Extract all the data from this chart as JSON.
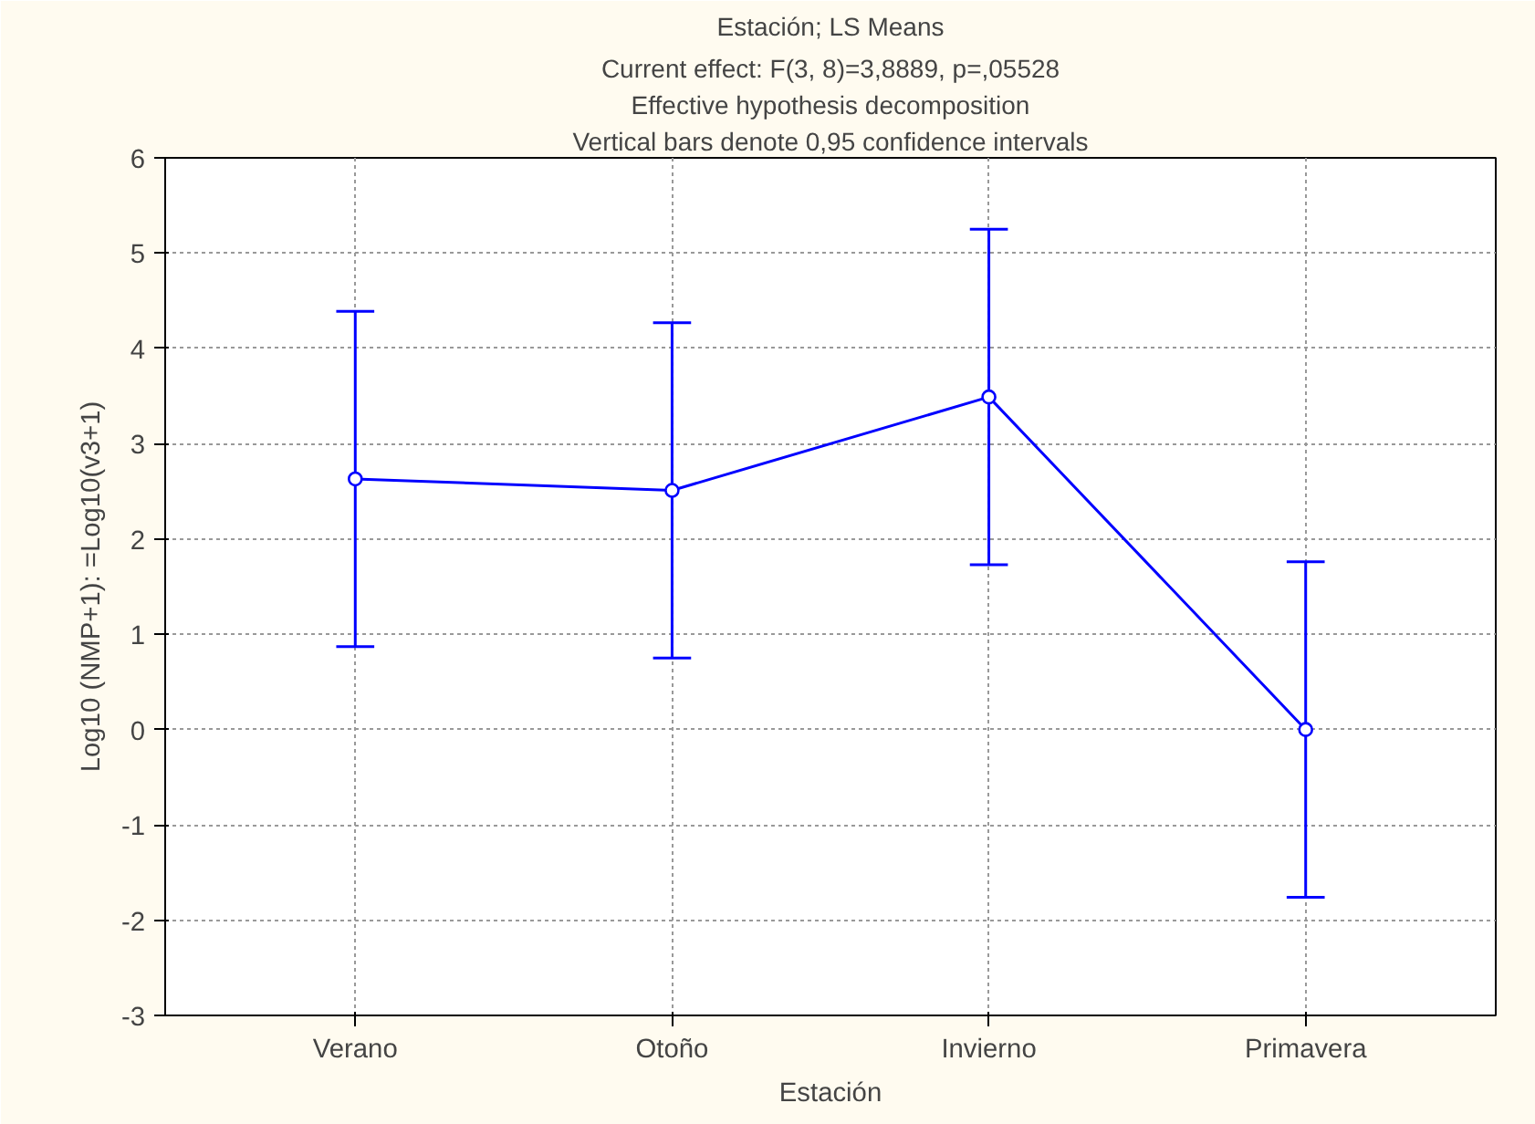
{
  "chart_data": {
    "type": "line",
    "title": "Estación; LS Means",
    "subtitle": "Current effect: F(3, 8)=3,8889, p=,05528",
    "annotations": [
      "Effective hypothesis decomposition",
      "Vertical bars denote 0,95 confidence intervals"
    ],
    "xlabel": "Estación",
    "ylabel": "Log10 (NMP+1): =Log10(v3+1)",
    "categories": [
      "Verano",
      "Otoño",
      "Invierno",
      "Primavera"
    ],
    "series": [
      {
        "color": "#0000ff",
        "values": [
          2.63,
          2.51,
          3.49,
          0.0
        ],
        "errors": [
          1.76,
          1.76,
          1.76,
          1.76
        ]
      }
    ],
    "ylim": [
      -3,
      6
    ],
    "yticks": [
      -3,
      -2,
      -1,
      0,
      1,
      2,
      3,
      4,
      5,
      6
    ],
    "grid": true,
    "marker": "circle",
    "line_style": "solid"
  }
}
